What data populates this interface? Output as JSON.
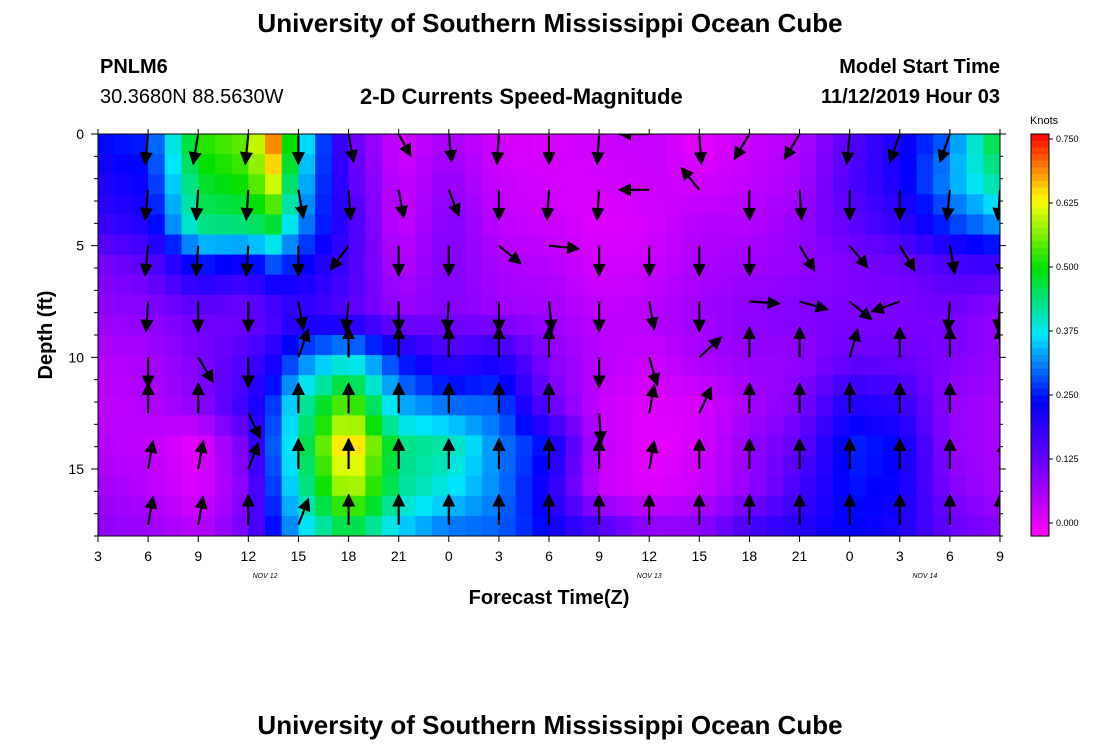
{
  "page": {
    "title_top": "University of Southern Mississippi Ocean Cube",
    "title_bottom": "University of Southern Mississippi Ocean Cube",
    "station_id": "PNLM6",
    "station_coords": "30.3680N 88.5630W",
    "plot_title": "2-D Currents Speed-Magnitude",
    "model_start_label": "Model Start Time",
    "model_start_value": "11/12/2019 Hour 03"
  },
  "chart_data": {
    "type": "heatmap",
    "title": "2-D Currents Speed-Magnitude",
    "xlabel": "Forecast Time(Z)",
    "ylabel": "Depth (ft)",
    "x_tick_labels": [
      "3",
      "6",
      "9",
      "12",
      "15",
      "18",
      "21",
      "0",
      "3",
      "6",
      "9",
      "12",
      "15",
      "18",
      "21",
      "0",
      "3",
      "6",
      "9"
    ],
    "x_hours_from_start": [
      0,
      3,
      6,
      9,
      12,
      15,
      18,
      21,
      24,
      27,
      30,
      33,
      36,
      39,
      42,
      45,
      48,
      51,
      54
    ],
    "x_range_hours": [
      0,
      54
    ],
    "date_labels": [
      {
        "text": "NOV 12",
        "hour": 10
      },
      {
        "text": "NOV 13",
        "hour": 33
      },
      {
        "text": "NOV 14",
        "hour": 49.5
      }
    ],
    "y_ticks": [
      0,
      5,
      10,
      15
    ],
    "y_range": [
      0,
      18
    ],
    "y_inverted": true,
    "colorbar": {
      "unit": "Knots",
      "range": [
        0,
        0.75
      ],
      "ticks": [
        "0.000",
        "0.125",
        "0.250",
        "0.375",
        "0.500",
        "0.625",
        "0.750"
      ],
      "colors": [
        "#ff00ff",
        "#7a00ff",
        "#0000ff",
        "#00e5ff",
        "#00e000",
        "#ffff00",
        "#ff0000"
      ]
    },
    "speed_field": {
      "hours": [
        0,
        3,
        6,
        9,
        10.5,
        12,
        15,
        18,
        21,
        24,
        27,
        30,
        33,
        36,
        39,
        42,
        45,
        48,
        51,
        54
      ],
      "depths": [
        0,
        2,
        4,
        6,
        8,
        10,
        12,
        14,
        16,
        18
      ],
      "values_knots": [
        [
          0.26,
          0.27,
          0.52,
          0.56,
          0.7,
          0.42,
          0.15,
          0.04,
          0.08,
          0.04,
          0.03,
          0.05,
          0.06,
          0.02,
          0.05,
          0.07,
          0.16,
          0.23,
          0.3,
          0.5
        ],
        [
          0.22,
          0.25,
          0.48,
          0.52,
          0.62,
          0.38,
          0.17,
          0.05,
          0.1,
          0.05,
          0.04,
          0.04,
          0.05,
          0.04,
          0.06,
          0.08,
          0.17,
          0.23,
          0.34,
          0.44
        ],
        [
          0.19,
          0.22,
          0.44,
          0.45,
          0.48,
          0.34,
          0.19,
          0.05,
          0.12,
          0.06,
          0.05,
          0.03,
          0.04,
          0.07,
          0.07,
          0.1,
          0.15,
          0.2,
          0.28,
          0.34
        ],
        [
          0.12,
          0.15,
          0.25,
          0.22,
          0.28,
          0.25,
          0.18,
          0.07,
          0.12,
          0.08,
          0.07,
          0.04,
          0.05,
          0.08,
          0.09,
          0.1,
          0.12,
          0.13,
          0.17,
          0.18
        ],
        [
          0.1,
          0.11,
          0.14,
          0.13,
          0.16,
          0.2,
          0.16,
          0.1,
          0.12,
          0.09,
          0.09,
          0.06,
          0.07,
          0.09,
          0.11,
          0.12,
          0.12,
          0.12,
          0.13,
          0.1
        ],
        [
          0.07,
          0.08,
          0.12,
          0.17,
          0.22,
          0.3,
          0.38,
          0.26,
          0.18,
          0.22,
          0.11,
          0.07,
          0.05,
          0.08,
          0.1,
          0.1,
          0.14,
          0.14,
          0.12,
          0.1
        ],
        [
          0.06,
          0.07,
          0.11,
          0.2,
          0.28,
          0.4,
          0.55,
          0.34,
          0.3,
          0.3,
          0.14,
          0.05,
          0.03,
          0.04,
          0.08,
          0.12,
          0.22,
          0.2,
          0.1,
          0.08
        ],
        [
          0.07,
          0.06,
          0.02,
          0.14,
          0.3,
          0.42,
          0.68,
          0.44,
          0.42,
          0.32,
          0.25,
          0.06,
          0.02,
          0.04,
          0.1,
          0.15,
          0.27,
          0.25,
          0.1,
          0.08
        ],
        [
          0.09,
          0.07,
          0.03,
          0.12,
          0.28,
          0.4,
          0.6,
          0.43,
          0.38,
          0.32,
          0.22,
          0.05,
          0.03,
          0.05,
          0.1,
          0.18,
          0.26,
          0.24,
          0.12,
          0.08
        ],
        [
          0.11,
          0.1,
          0.07,
          0.14,
          0.25,
          0.35,
          0.45,
          0.35,
          0.3,
          0.3,
          0.25,
          0.2,
          0.12,
          0.12,
          0.2,
          0.22,
          0.25,
          0.22,
          0.15,
          0.12
        ]
      ]
    },
    "vectors": [
      {
        "hour": 3,
        "depth": 0,
        "dx": -3,
        "dy": 30
      },
      {
        "hour": 6,
        "depth": 0,
        "dx": -5,
        "dy": 30
      },
      {
        "hour": 9,
        "depth": 0,
        "dx": -3,
        "dy": 30
      },
      {
        "hour": 12,
        "depth": 0,
        "dx": 0,
        "dy": 30
      },
      {
        "hour": 15,
        "depth": 0,
        "dx": 5,
        "dy": 28
      },
      {
        "hour": 18,
        "depth": 0,
        "dx": 12,
        "dy": 22
      },
      {
        "hour": 21,
        "depth": 0,
        "dx": 3,
        "dy": 28
      },
      {
        "hour": 24,
        "depth": 0,
        "dx": -2,
        "dy": 30
      },
      {
        "hour": 27,
        "depth": 0,
        "dx": 0,
        "dy": 30
      },
      {
        "hour": 30,
        "depth": 0,
        "dx": -2,
        "dy": 30
      },
      {
        "hour": 33,
        "depth": 0,
        "dx": -30,
        "dy": 0
      },
      {
        "hour": 36,
        "depth": 0,
        "dx": 2,
        "dy": 30
      },
      {
        "hour": 39,
        "depth": 0,
        "dx": -15,
        "dy": 25
      },
      {
        "hour": 42,
        "depth": 0,
        "dx": -15,
        "dy": 25
      },
      {
        "hour": 45,
        "depth": 0,
        "dx": -3,
        "dy": 30
      },
      {
        "hour": 48,
        "depth": 0,
        "dx": -10,
        "dy": 28
      },
      {
        "hour": 51,
        "depth": 0,
        "dx": -10,
        "dy": 28
      },
      {
        "hour": 3,
        "depth": 2.5,
        "dx": -3,
        "dy": 30
      },
      {
        "hour": 6,
        "depth": 2.5,
        "dx": -2,
        "dy": 30
      },
      {
        "hour": 9,
        "depth": 2.5,
        "dx": -2,
        "dy": 30
      },
      {
        "hour": 12,
        "depth": 2.5,
        "dx": 5,
        "dy": 28
      },
      {
        "hour": 15,
        "depth": 2.5,
        "dx": 2,
        "dy": 30
      },
      {
        "hour": 18,
        "depth": 2.5,
        "dx": 5,
        "dy": 28
      },
      {
        "hour": 21,
        "depth": 2.5,
        "dx": 10,
        "dy": 26
      },
      {
        "hour": 24,
        "depth": 2.5,
        "dx": 0,
        "dy": 30
      },
      {
        "hour": 27,
        "depth": 2.5,
        "dx": -2,
        "dy": 30
      },
      {
        "hour": 30,
        "depth": 2.5,
        "dx": -2,
        "dy": 30
      },
      {
        "hour": 33,
        "depth": 2.5,
        "dx": -30,
        "dy": 0
      },
      {
        "hour": 36,
        "depth": 2.5,
        "dx": -18,
        "dy": -22
      },
      {
        "hour": 39,
        "depth": 2.5,
        "dx": 0,
        "dy": 30
      },
      {
        "hour": 42,
        "depth": 2.5,
        "dx": 2,
        "dy": 30
      },
      {
        "hour": 45,
        "depth": 2.5,
        "dx": 0,
        "dy": 30
      },
      {
        "hour": 48,
        "depth": 2.5,
        "dx": 0,
        "dy": 30
      },
      {
        "hour": 51,
        "depth": 2.5,
        "dx": -3,
        "dy": 30
      },
      {
        "hour": 54,
        "depth": 2.5,
        "dx": -2,
        "dy": 30
      },
      {
        "hour": 3,
        "depth": 5,
        "dx": -3,
        "dy": 30
      },
      {
        "hour": 6,
        "depth": 5,
        "dx": -2,
        "dy": 30
      },
      {
        "hour": 9,
        "depth": 5,
        "dx": -2,
        "dy": 30
      },
      {
        "hour": 12,
        "depth": 5,
        "dx": 0,
        "dy": 30
      },
      {
        "hour": 15,
        "depth": 5,
        "dx": -18,
        "dy": 24
      },
      {
        "hour": 18,
        "depth": 5,
        "dx": 0,
        "dy": 30
      },
      {
        "hour": 21,
        "depth": 5,
        "dx": 0,
        "dy": 30
      },
      {
        "hour": 24,
        "depth": 5,
        "dx": 22,
        "dy": 18
      },
      {
        "hour": 27,
        "depth": 5,
        "dx": 30,
        "dy": 3
      },
      {
        "hour": 30,
        "depth": 5,
        "dx": 0,
        "dy": 30
      },
      {
        "hour": 33,
        "depth": 5,
        "dx": 0,
        "dy": 30
      },
      {
        "hour": 36,
        "depth": 5,
        "dx": 0,
        "dy": 30
      },
      {
        "hour": 39,
        "depth": 5,
        "dx": 0,
        "dy": 30
      },
      {
        "hour": 42,
        "depth": 5,
        "dx": 15,
        "dy": 25
      },
      {
        "hour": 45,
        "depth": 5,
        "dx": 18,
        "dy": 22
      },
      {
        "hour": 48,
        "depth": 5,
        "dx": 15,
        "dy": 25
      },
      {
        "hour": 51,
        "depth": 5,
        "dx": 5,
        "dy": 28
      },
      {
        "hour": 54,
        "depth": 5,
        "dx": 2,
        "dy": 30
      },
      {
        "hour": 3,
        "depth": 7.5,
        "dx": -2,
        "dy": 30
      },
      {
        "hour": 6,
        "depth": 7.5,
        "dx": 0,
        "dy": 30
      },
      {
        "hour": 9,
        "depth": 7.5,
        "dx": 0,
        "dy": 30
      },
      {
        "hour": 12,
        "depth": 7.5,
        "dx": 5,
        "dy": 28
      },
      {
        "hour": 15,
        "depth": 7.5,
        "dx": -3,
        "dy": 30
      },
      {
        "hour": 18,
        "depth": 7.5,
        "dx": 0,
        "dy": 30
      },
      {
        "hour": 21,
        "depth": 7.5,
        "dx": -2,
        "dy": 30
      },
      {
        "hour": 24,
        "depth": 7.5,
        "dx": 0,
        "dy": 30
      },
      {
        "hour": 27,
        "depth": 7.5,
        "dx": 3,
        "dy": 30
      },
      {
        "hour": 30,
        "depth": 7.5,
        "dx": 0,
        "dy": 30
      },
      {
        "hour": 33,
        "depth": 7.5,
        "dx": 5,
        "dy": 28
      },
      {
        "hour": 36,
        "depth": 7.5,
        "dx": 0,
        "dy": 30
      },
      {
        "hour": 39,
        "depth": 7.5,
        "dx": 30,
        "dy": 2
      },
      {
        "hour": 42,
        "depth": 7.5,
        "dx": 28,
        "dy": 8
      },
      {
        "hour": 45,
        "depth": 7.5,
        "dx": 22,
        "dy": 18
      },
      {
        "hour": 48,
        "depth": 7.5,
        "dx": -28,
        "dy": 10
      },
      {
        "hour": 51,
        "depth": 7.5,
        "dx": -2,
        "dy": 30
      },
      {
        "hour": 54,
        "depth": 7.5,
        "dx": -2,
        "dy": 30
      },
      {
        "hour": 3,
        "depth": 10,
        "dx": 0,
        "dy": 30
      },
      {
        "hour": 6,
        "depth": 10,
        "dx": 15,
        "dy": 25
      },
      {
        "hour": 9,
        "depth": 10,
        "dx": 0,
        "dy": 30
      },
      {
        "hour": 12,
        "depth": 10,
        "dx": 10,
        "dy": -28
      },
      {
        "hour": 15,
        "depth": 10,
        "dx": 0,
        "dy": -30
      },
      {
        "hour": 18,
        "depth": 10,
        "dx": 0,
        "dy": -30
      },
      {
        "hour": 21,
        "depth": 10,
        "dx": 0,
        "dy": -30
      },
      {
        "hour": 24,
        "depth": 10,
        "dx": 0,
        "dy": -30
      },
      {
        "hour": 27,
        "depth": 10,
        "dx": 0,
        "dy": -30
      },
      {
        "hour": 30,
        "depth": 10,
        "dx": 0,
        "dy": 30
      },
      {
        "hour": 33,
        "depth": 10,
        "dx": 8,
        "dy": 28
      },
      {
        "hour": 36,
        "depth": 10,
        "dx": 22,
        "dy": -20
      },
      {
        "hour": 39,
        "depth": 10,
        "dx": 0,
        "dy": -30
      },
      {
        "hour": 42,
        "depth": 10,
        "dx": 0,
        "dy": -30
      },
      {
        "hour": 45,
        "depth": 10,
        "dx": 8,
        "dy": -28
      },
      {
        "hour": 48,
        "depth": 10,
        "dx": 0,
        "dy": -30
      },
      {
        "hour": 51,
        "depth": 10,
        "dx": 0,
        "dy": -30
      },
      {
        "hour": 54,
        "depth": 10,
        "dx": 0,
        "dy": -30
      },
      {
        "hour": 3,
        "depth": 12.5,
        "dx": 0,
        "dy": -30
      },
      {
        "hour": 6,
        "depth": 12.5,
        "dx": 0,
        "dy": -30
      },
      {
        "hour": 9,
        "depth": 12.5,
        "dx": 12,
        "dy": 25
      },
      {
        "hour": 12,
        "depth": 12.5,
        "dx": 0,
        "dy": -30
      },
      {
        "hour": 15,
        "depth": 12.5,
        "dx": 0,
        "dy": -30
      },
      {
        "hour": 18,
        "depth": 12.5,
        "dx": 0,
        "dy": -30
      },
      {
        "hour": 21,
        "depth": 12.5,
        "dx": 0,
        "dy": -30
      },
      {
        "hour": 24,
        "depth": 12.5,
        "dx": 0,
        "dy": -30
      },
      {
        "hour": 27,
        "depth": 12.5,
        "dx": 0,
        "dy": -30
      },
      {
        "hour": 30,
        "depth": 12.5,
        "dx": 2,
        "dy": 30
      },
      {
        "hour": 33,
        "depth": 12.5,
        "dx": 5,
        "dy": -28
      },
      {
        "hour": 36,
        "depth": 12.5,
        "dx": 12,
        "dy": -26
      },
      {
        "hour": 39,
        "depth": 12.5,
        "dx": 0,
        "dy": -30
      },
      {
        "hour": 42,
        "depth": 12.5,
        "dx": 0,
        "dy": -30
      },
      {
        "hour": 45,
        "depth": 12.5,
        "dx": 0,
        "dy": -30
      },
      {
        "hour": 48,
        "depth": 12.5,
        "dx": 0,
        "dy": -30
      },
      {
        "hour": 51,
        "depth": 12.5,
        "dx": 0,
        "dy": -30
      },
      {
        "hour": 54,
        "depth": 12.5,
        "dx": 22,
        "dy": 18
      },
      {
        "hour": 3,
        "depth": 15,
        "dx": 5,
        "dy": -28
      },
      {
        "hour": 6,
        "depth": 15,
        "dx": 5,
        "dy": -28
      },
      {
        "hour": 9,
        "depth": 15,
        "dx": 10,
        "dy": -26
      },
      {
        "hour": 12,
        "depth": 15,
        "dx": 0,
        "dy": -30
      },
      {
        "hour": 15,
        "depth": 15,
        "dx": 0,
        "dy": -30
      },
      {
        "hour": 18,
        "depth": 15,
        "dx": 0,
        "dy": -30
      },
      {
        "hour": 21,
        "depth": 15,
        "dx": 0,
        "dy": -30
      },
      {
        "hour": 24,
        "depth": 15,
        "dx": 0,
        "dy": -30
      },
      {
        "hour": 27,
        "depth": 15,
        "dx": 0,
        "dy": -30
      },
      {
        "hour": 30,
        "depth": 15,
        "dx": 0,
        "dy": -30
      },
      {
        "hour": 33,
        "depth": 15,
        "dx": 5,
        "dy": -28
      },
      {
        "hour": 36,
        "depth": 15,
        "dx": 0,
        "dy": -30
      },
      {
        "hour": 39,
        "depth": 15,
        "dx": 0,
        "dy": -30
      },
      {
        "hour": 42,
        "depth": 15,
        "dx": 0,
        "dy": -30
      },
      {
        "hour": 45,
        "depth": 15,
        "dx": 0,
        "dy": -30
      },
      {
        "hour": 48,
        "depth": 15,
        "dx": 0,
        "dy": -30
      },
      {
        "hour": 51,
        "depth": 15,
        "dx": 0,
        "dy": -30
      },
      {
        "hour": 54,
        "depth": 15,
        "dx": 5,
        "dy": -28
      },
      {
        "hour": 3,
        "depth": 17.5,
        "dx": 5,
        "dy": -28
      },
      {
        "hour": 6,
        "depth": 17.5,
        "dx": 5,
        "dy": -28
      },
      {
        "hour": 9,
        "depth": 17.5,
        "dx": 0,
        "dy": -30
      },
      {
        "hour": 12,
        "depth": 17.5,
        "dx": 10,
        "dy": -26
      },
      {
        "hour": 15,
        "depth": 17.5,
        "dx": 0,
        "dy": -30
      },
      {
        "hour": 18,
        "depth": 17.5,
        "dx": 0,
        "dy": -30
      },
      {
        "hour": 21,
        "depth": 17.5,
        "dx": 0,
        "dy": -30
      },
      {
        "hour": 24,
        "depth": 17.5,
        "dx": 0,
        "dy": -30
      },
      {
        "hour": 27,
        "depth": 17.5,
        "dx": 0,
        "dy": -30
      },
      {
        "hour": 30,
        "depth": 17.5,
        "dx": 0,
        "dy": -30
      },
      {
        "hour": 33,
        "depth": 17.5,
        "dx": 0,
        "dy": -30
      },
      {
        "hour": 36,
        "depth": 17.5,
        "dx": 0,
        "dy": -30
      },
      {
        "hour": 39,
        "depth": 17.5,
        "dx": 0,
        "dy": -30
      },
      {
        "hour": 42,
        "depth": 17.5,
        "dx": 0,
        "dy": -30
      },
      {
        "hour": 45,
        "depth": 17.5,
        "dx": 0,
        "dy": -30
      },
      {
        "hour": 48,
        "depth": 17.5,
        "dx": 0,
        "dy": -30
      },
      {
        "hour": 51,
        "depth": 17.5,
        "dx": 0,
        "dy": -30
      },
      {
        "hour": 54,
        "depth": 17.5,
        "dx": 0,
        "dy": -30
      }
    ]
  }
}
